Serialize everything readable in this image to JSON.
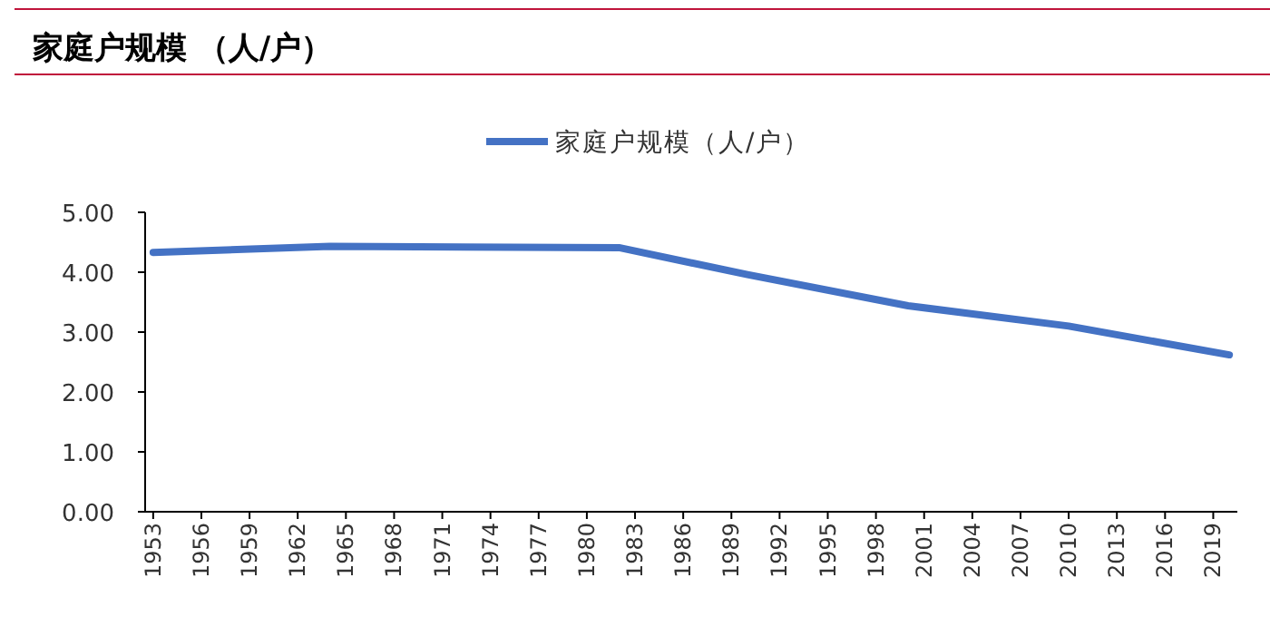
{
  "chart_data": {
    "type": "line",
    "title": "家庭户规模 （人/户）",
    "x": [
      1953,
      1964,
      1982,
      1990,
      2000,
      2010,
      2020
    ],
    "series": [
      {
        "name": "家庭户规模（人/户）",
        "color": "#4472c4",
        "values": [
          4.33,
          4.43,
          4.41,
          3.96,
          3.44,
          3.1,
          2.62
        ]
      }
    ],
    "xlim": [
      1952.5,
      2020.5
    ],
    "xticks": [
      1953,
      1956,
      1959,
      1962,
      1965,
      1968,
      1971,
      1974,
      1977,
      1980,
      1983,
      1986,
      1989,
      1992,
      1995,
      1998,
      2001,
      2004,
      2007,
      2010,
      2013,
      2016,
      2019
    ],
    "ylim": [
      0,
      5
    ],
    "yticks": [
      {
        "value": 0,
        "label": "0.00"
      },
      {
        "value": 1,
        "label": "1.00"
      },
      {
        "value": 2,
        "label": "2.00"
      },
      {
        "value": 3,
        "label": "3.00"
      },
      {
        "value": 4,
        "label": "4.00"
      },
      {
        "value": 5,
        "label": "5.00"
      }
    ],
    "legend": "top",
    "grid": false,
    "marker": "none",
    "line_style": "solid"
  }
}
